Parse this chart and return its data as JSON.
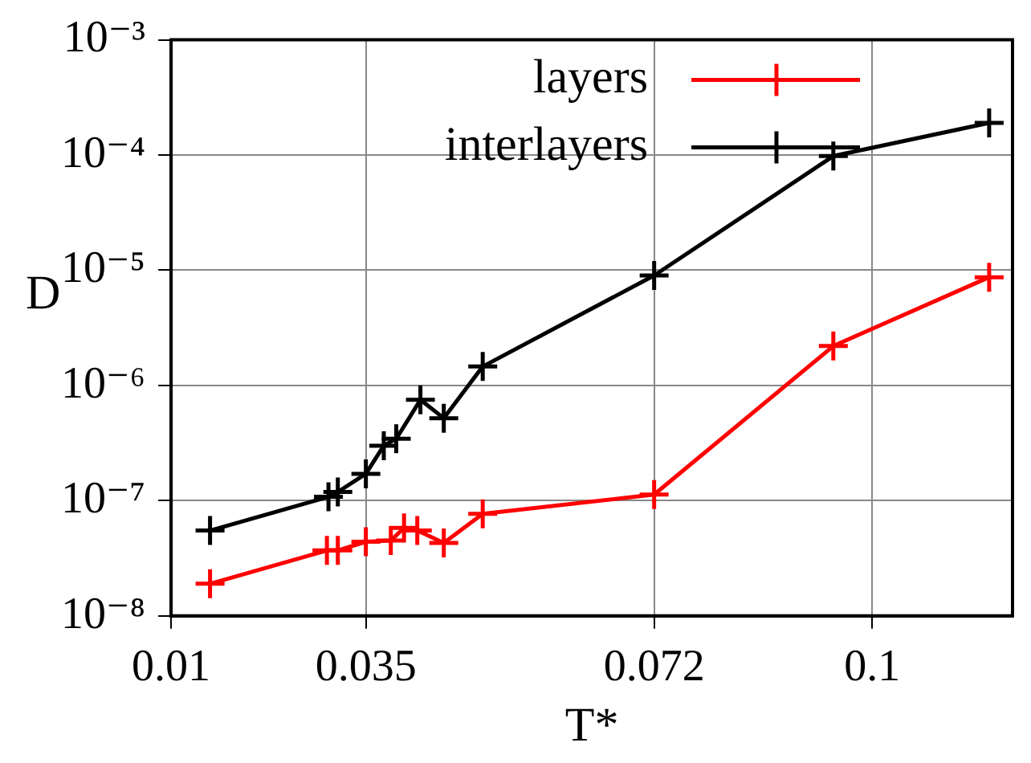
{
  "chart_data": {
    "type": "line",
    "xlabel": "T*",
    "ylabel": "D",
    "log": "y",
    "grid": true,
    "legend": "top right",
    "marker": "cross",
    "line_style": "solid",
    "xlim": [
      0.01,
      0.118
    ],
    "xticks": [
      0.01,
      0.035,
      0.072,
      0.1
    ],
    "ylim": [
      1e-08,
      0.001
    ],
    "yticks": [
      {
        "value": 1e-08,
        "label": "10⁻⁸"
      },
      {
        "value": 1e-07,
        "label": "10⁻⁷"
      },
      {
        "value": 1e-06,
        "label": "10⁻⁶"
      },
      {
        "value": 1e-05,
        "label": "10⁻⁵"
      },
      {
        "value": 0.0001,
        "label": "10⁻⁴"
      },
      {
        "value": 0.001,
        "label": "10⁻³"
      }
    ],
    "series": [
      {
        "name": "layers",
        "color": "#ff0000",
        "x": [
          0.015,
          0.03,
          0.0314,
          0.035,
          0.0382,
          0.0399,
          0.0416,
          0.045,
          0.05,
          0.072,
          0.095,
          0.115
        ],
        "values": [
          1.9e-08,
          3.7e-08,
          3.7e-08,
          4.4e-08,
          4.5e-08,
          5.8e-08,
          5.5e-08,
          4.3e-08,
          7.7e-08,
          1.13e-07,
          2.2e-06,
          8.7e-06
        ]
      },
      {
        "name": "interlayers",
        "color": "#000000",
        "x": [
          0.015,
          0.0302,
          0.0314,
          0.035,
          0.0373,
          0.0389,
          0.042,
          0.045,
          0.05,
          0.072,
          0.095,
          0.115
        ],
        "values": [
          5.5e-08,
          1.08e-07,
          1.19e-07,
          1.71e-07,
          3e-07,
          3.45e-07,
          7.5e-07,
          5.2e-07,
          1.46e-06,
          9e-06,
          9.8e-05,
          0.00019
        ]
      }
    ]
  }
}
